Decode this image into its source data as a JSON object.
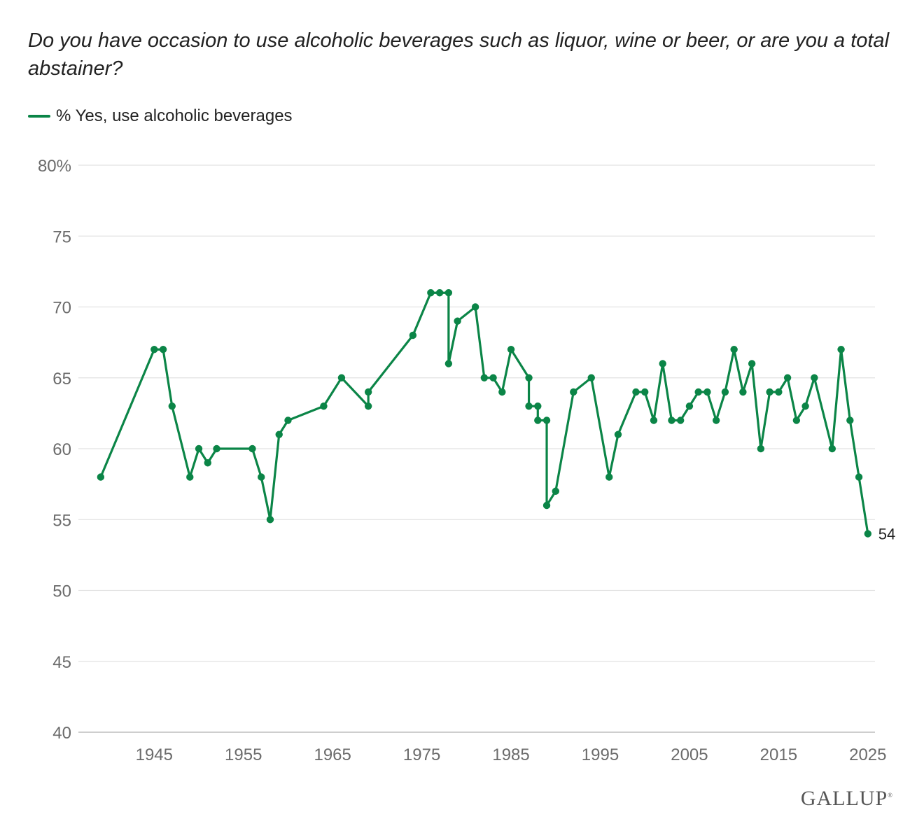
{
  "chart_data": {
    "type": "line",
    "title": "Do you have occasion to use alcoholic beverages such as liquor, wine or beer, or are you a total abstainer?",
    "legend": "% Yes, use alcoholic beverages",
    "legend_position": "top-left",
    "color": "#0b8547",
    "ylim": [
      40,
      80
    ],
    "xlim": [
      1936.5,
      2025.8
    ],
    "y_ticks": [
      40,
      45,
      50,
      55,
      60,
      65,
      70,
      75,
      80
    ],
    "y_tick_labels": [
      "40",
      "45",
      "50",
      "55",
      "60",
      "65",
      "70",
      "75",
      "80%"
    ],
    "x_ticks": [
      1945,
      1955,
      1965,
      1975,
      1985,
      1995,
      2005,
      2015,
      2025
    ],
    "x_tick_labels": [
      "1945",
      "1955",
      "1965",
      "1975",
      "1985",
      "1995",
      "2005",
      "2015",
      "2025"
    ],
    "grid": true,
    "end_label": "54",
    "series": [
      {
        "name": "% Yes, use alcoholic beverages",
        "x": [
          1939,
          1945,
          1946,
          1947,
          1949,
          1950,
          1951,
          1952,
          1956,
          1957,
          1958,
          1959,
          1960,
          1964,
          1966,
          1969,
          1969,
          1974,
          1976,
          1977,
          1978,
          1978,
          1979,
          1981,
          1982,
          1983,
          1984,
          1985,
          1987,
          1987,
          1988,
          1988,
          1989,
          1989,
          1990,
          1992,
          1994,
          1996,
          1997,
          1999,
          2000,
          2001,
          2002,
          2003,
          2004,
          2005,
          2006,
          2007,
          2008,
          2009,
          2010,
          2011,
          2012,
          2013,
          2014,
          2015,
          2016,
          2017,
          2018,
          2019,
          2021,
          2022,
          2023,
          2024,
          2025
        ],
        "values": [
          58,
          67,
          67,
          63,
          58,
          60,
          59,
          60,
          60,
          58,
          55,
          61,
          62,
          63,
          65,
          63,
          64,
          68,
          71,
          71,
          71,
          66,
          69,
          70,
          65,
          65,
          64,
          67,
          65,
          63,
          63,
          62,
          62,
          56,
          57,
          64,
          65,
          58,
          61,
          64,
          64,
          62,
          66,
          62,
          62,
          63,
          64,
          64,
          62,
          64,
          67,
          64,
          66,
          60,
          64,
          64,
          65,
          62,
          63,
          65,
          60,
          67,
          62,
          58,
          54
        ]
      }
    ]
  },
  "brand": {
    "logo_text": "GALLUP",
    "logo_mark": "®"
  }
}
